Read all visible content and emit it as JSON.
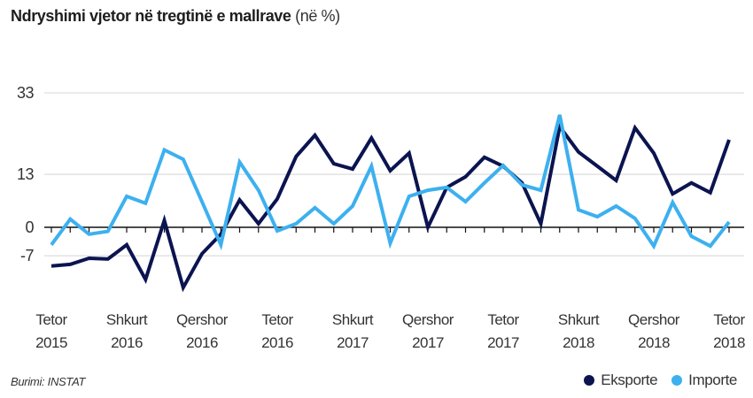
{
  "title": {
    "bold": "Ndryshimi vjetor në tregtinë e mallrave",
    "light": "(në %)"
  },
  "source": "Burimi:  INSTAT",
  "colors": {
    "export": "#0b1450",
    "import": "#3db0ef",
    "grid": "#e3e3e3",
    "axis": "#111111"
  },
  "legend": [
    {
      "label": "Eksporte",
      "color": "#0b1450"
    },
    {
      "label": "Importe",
      "color": "#3db0ef"
    }
  ],
  "chart_data": {
    "type": "line",
    "title": "Ndryshimi vjetor në tregtinë e mallrave (në %)",
    "xlabel": "",
    "ylabel": "",
    "ylim": [
      -7,
      33
    ],
    "yticks": [
      33,
      13,
      0,
      -7
    ],
    "grid": true,
    "legend_position": "bottom-right",
    "x": [
      "Tetor 2015",
      "Nëntor 2015",
      "Dhjetor 2015",
      "Janar 2016",
      "Shkurt 2016",
      "Mars 2016",
      "Prill 2016",
      "Maj 2016",
      "Qershor 2016",
      "Korrik 2016",
      "Gusht 2016",
      "Shtator 2016",
      "Tetor 2016",
      "Nëntor 2016",
      "Dhjetor 2016",
      "Janar 2017",
      "Shkurt 2017",
      "Mars 2017",
      "Prill 2017",
      "Maj 2017",
      "Qershor 2017",
      "Korrik 2017",
      "Gusht 2017",
      "Shtator 2017",
      "Tetor 2017",
      "Nëntor 2017",
      "Dhjetor 2017",
      "Janar 2018",
      "Shkurt 2018",
      "Mars 2018",
      "Prill 2018",
      "Maj 2018",
      "Qershor 2018",
      "Korrik 2018",
      "Gusht 2018",
      "Shtator 2018",
      "Tetor 2018"
    ],
    "xtick_labels": [
      {
        "index": 0,
        "line1": "Tetor",
        "line2": "2015"
      },
      {
        "index": 4,
        "line1": "Shkurt",
        "line2": "2016"
      },
      {
        "index": 8,
        "line1": "Qershor",
        "line2": "2016"
      },
      {
        "index": 12,
        "line1": "Tetor",
        "line2": "2016"
      },
      {
        "index": 16,
        "line1": "Shkurt",
        "line2": "2017"
      },
      {
        "index": 20,
        "line1": "Qershor",
        "line2": "2017"
      },
      {
        "index": 24,
        "line1": "Tetor",
        "line2": "2017"
      },
      {
        "index": 28,
        "line1": "Shkurt",
        "line2": "2018"
      },
      {
        "index": 32,
        "line1": "Qershor",
        "line2": "2018"
      },
      {
        "index": 36,
        "line1": "Tetor",
        "line2": "2018"
      }
    ],
    "series": [
      {
        "name": "Eksporte",
        "color": "#0b1450",
        "values": [
          -9.5,
          -9.1,
          -7.6,
          -7.8,
          -4.3,
          -12.8,
          1.7,
          -14.8,
          -6.5,
          -1.7,
          6.7,
          0.9,
          7.0,
          17.4,
          22.6,
          15.6,
          14.3,
          21.9,
          13.9,
          18.2,
          0.0,
          9.8,
          12.4,
          17.2,
          15.0,
          10.9,
          0.9,
          24.7,
          18.5,
          15.0,
          11.5,
          24.4,
          18.2,
          8.2,
          10.9,
          8.5,
          21.5
        ]
      },
      {
        "name": "Importe",
        "color": "#3db0ef",
        "values": [
          -4.3,
          2.0,
          -1.7,
          -1.0,
          7.6,
          5.9,
          19.0,
          16.7,
          6.3,
          -4.3,
          16.0,
          9.1,
          -0.9,
          0.9,
          4.8,
          0.9,
          5.2,
          15.0,
          -3.9,
          7.6,
          9.1,
          9.8,
          6.3,
          10.9,
          15.2,
          10.4,
          9.1,
          27.6,
          4.3,
          2.6,
          5.2,
          2.2,
          -4.6,
          6.1,
          -2.2,
          -4.6,
          1.3
        ]
      }
    ]
  }
}
